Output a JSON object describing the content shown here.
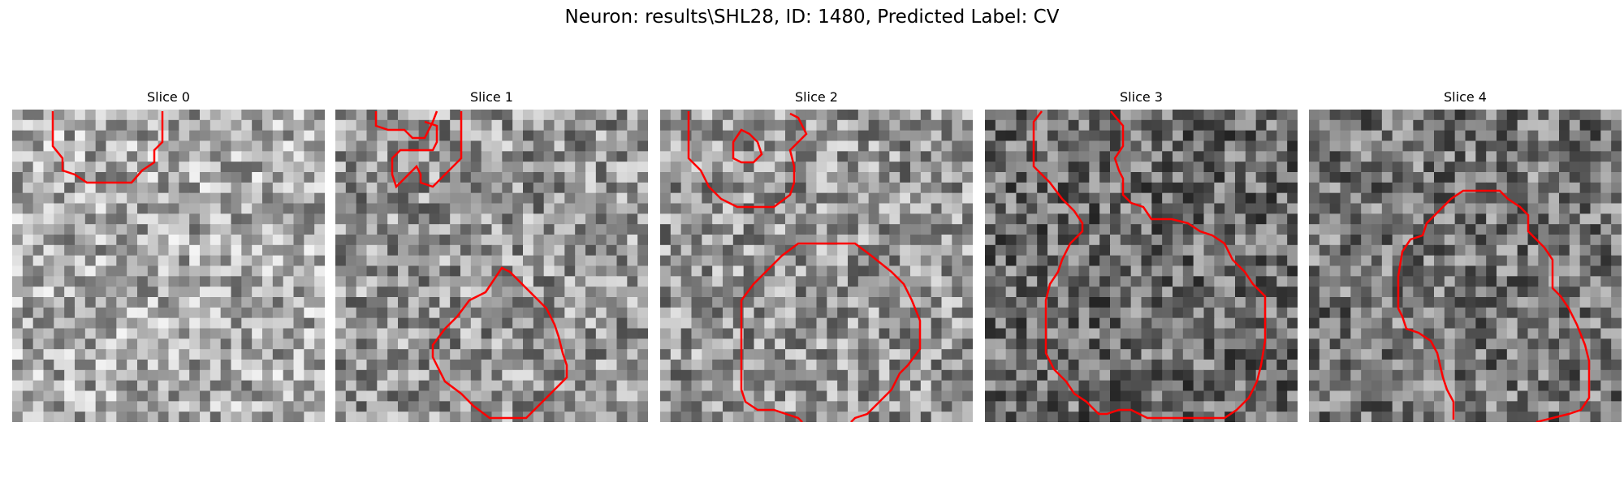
{
  "figure": {
    "title": "Neuron: results\\SHL28, ID: 1480, Predicted Label: CV"
  },
  "panels": [
    {
      "title": "Slice 0"
    },
    {
      "title": "Slice 1"
    },
    {
      "title": "Slice 2"
    },
    {
      "title": "Slice 3"
    },
    {
      "title": "Slice 4"
    }
  ],
  "colors": {
    "contour": "#ff0000",
    "background": "#ffffff"
  }
}
